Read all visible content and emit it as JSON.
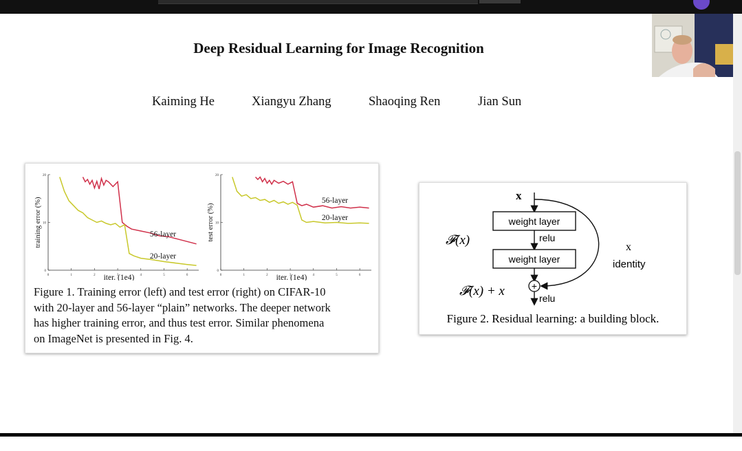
{
  "paper": {
    "title": "Deep Residual Learning for Image Recognition",
    "authors": [
      "Kaiming He",
      "Xiangyu Zhang",
      "Shaoqing Ren",
      "Jian Sun"
    ]
  },
  "figure1": {
    "caption": "Figure 1. Training error (left) and test error (right) on CIFAR-10 with 20-layer and 56-layer “plain” networks. The deeper network has higher training error, and thus test error. Similar phenomena on ImageNet is presented in Fig. 4.",
    "caption_lines": [
      "Figure 1. Training error (left) and test error (right) on CIFAR-10",
      "with 20-layer and 56-layer “plain” networks. The deeper network",
      "has higher training error, and thus test error.  Similar phenomena",
      "on ImageNet is presented in Fig. 4."
    ]
  },
  "chart_data": [
    {
      "type": "line",
      "xlabel": "iter. (1e4)",
      "ylabel": "training error (%)",
      "x_ticks": [
        "0",
        "1",
        "2",
        "3",
        "4",
        "5",
        "6"
      ],
      "y_ticks": [
        "0",
        "10",
        "20"
      ],
      "xlim": [
        0,
        6.5
      ],
      "ylim": [
        0,
        20
      ],
      "series": [
        {
          "name": "56-layer",
          "color": "#d0304a",
          "x": [
            1.5,
            1.6,
            1.7,
            1.8,
            1.9,
            2.0,
            2.1,
            2.2,
            2.3,
            2.4,
            2.5,
            2.6,
            2.8,
            3.0,
            3.2,
            3.4,
            3.6,
            4.0,
            4.4,
            4.8,
            5.2,
            5.6,
            6.0,
            6.4
          ],
          "y": [
            19.5,
            18.5,
            19.0,
            18.0,
            18.8,
            17.2,
            18.6,
            17.0,
            19.2,
            17.8,
            18.8,
            18.5,
            17.5,
            18.5,
            10.0,
            9.2,
            8.6,
            8.2,
            7.8,
            7.2,
            7.0,
            6.5,
            6.0,
            5.5
          ]
        },
        {
          "name": "20-layer",
          "color": "#c8c82a",
          "x": [
            0.5,
            0.7,
            0.9,
            1.1,
            1.3,
            1.5,
            1.7,
            1.9,
            2.1,
            2.3,
            2.5,
            2.7,
            2.9,
            3.1,
            3.3,
            3.5,
            3.7,
            4.0,
            4.5,
            5.0,
            5.5,
            6.0,
            6.4
          ],
          "y": [
            19.5,
            16.5,
            14.5,
            13.5,
            12.5,
            12.0,
            11.0,
            10.5,
            10.0,
            10.3,
            9.8,
            9.5,
            9.8,
            9.0,
            9.5,
            3.5,
            3.0,
            2.5,
            2.2,
            1.8,
            1.5,
            1.2,
            1.0
          ]
        }
      ]
    },
    {
      "type": "line",
      "xlabel": "iter. (1e4)",
      "ylabel": "test error (%)",
      "x_ticks": [
        "0",
        "1",
        "2",
        "3",
        "4",
        "5",
        "6"
      ],
      "y_ticks": [
        "0",
        "10",
        "20"
      ],
      "xlim": [
        0,
        6.5
      ],
      "ylim": [
        0,
        20
      ],
      "series": [
        {
          "name": "56-layer",
          "color": "#d0304a",
          "x": [
            1.5,
            1.6,
            1.7,
            1.8,
            1.9,
            2.0,
            2.1,
            2.2,
            2.3,
            2.5,
            2.7,
            2.9,
            3.1,
            3.3,
            3.5,
            3.7,
            4.0,
            4.4,
            4.8,
            5.2,
            5.6,
            6.0,
            6.4
          ],
          "y": [
            19.5,
            19.0,
            19.5,
            18.5,
            19.2,
            18.2,
            18.8,
            18.0,
            18.8,
            18.2,
            18.6,
            18.0,
            18.5,
            14.0,
            13.5,
            13.8,
            13.2,
            13.5,
            13.0,
            13.3,
            13.0,
            13.2,
            13.0
          ]
        },
        {
          "name": "20-layer",
          "color": "#c8c82a",
          "x": [
            0.5,
            0.7,
            0.9,
            1.1,
            1.3,
            1.5,
            1.7,
            1.9,
            2.1,
            2.3,
            2.5,
            2.7,
            2.9,
            3.1,
            3.3,
            3.5,
            3.7,
            4.0,
            4.5,
            5.0,
            5.5,
            6.0,
            6.4
          ],
          "y": [
            19.5,
            16.5,
            15.5,
            15.8,
            15.0,
            15.2,
            14.6,
            14.8,
            14.2,
            14.6,
            14.0,
            14.3,
            13.8,
            14.2,
            13.6,
            10.5,
            10.0,
            10.2,
            9.9,
            10.0,
            9.8,
            9.9,
            9.8
          ]
        }
      ]
    }
  ],
  "figure2": {
    "caption": "Figure 2. Residual learning: a building block.",
    "input_label": "x",
    "layer1": "weight layer",
    "layer2": "weight layer",
    "relu1": "relu",
    "relu2": "relu",
    "fx": "𝓕(x)",
    "fx_plus_x": "𝓕(x) + x",
    "shortcut_x": "x",
    "shortcut_label": "identity",
    "sum_symbol": "+"
  }
}
